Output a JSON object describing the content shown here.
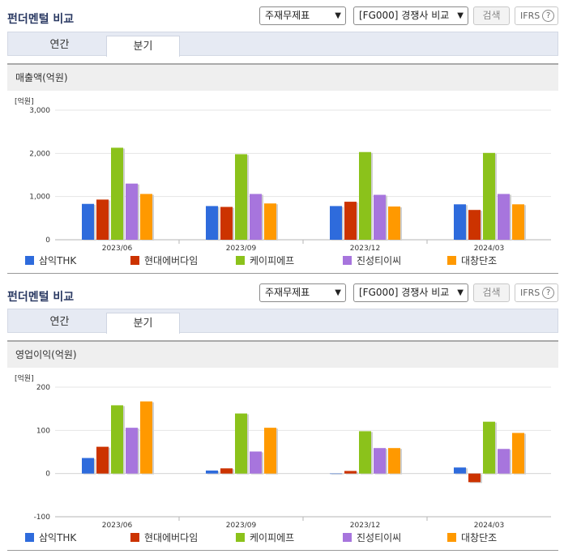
{
  "ui": {
    "title": "펀더멘털 비교",
    "statement_select": "주재무제표",
    "peer_select": "[FG000] 경쟁사 비교",
    "search_button": "검색",
    "ifrs_label": "IFRS",
    "help_glyph": "?",
    "tabs": [
      "연간",
      "분기"
    ],
    "active_tab": "분기"
  },
  "legend": {
    "colors": [
      "#2e6bdc",
      "#cc3300",
      "#8bc21b",
      "#a775dd",
      "#ff9900"
    ]
  },
  "chart_data": [
    {
      "type": "bar",
      "title": "매출액(억원)",
      "unit_label": "[억원]",
      "categories": [
        "2023/06",
        "2023/09",
        "2023/12",
        "2024/03"
      ],
      "ylim": [
        0,
        3000
      ],
      "yticks": [
        0,
        1000,
        2000,
        3000
      ],
      "ytick_labels": [
        "0",
        "1,000",
        "2,000",
        "3,000"
      ],
      "grid": true,
      "legend_position": "bottom",
      "series": [
        {
          "name": "삼익THK",
          "color": "#2e6bdc",
          "values": [
            830,
            780,
            780,
            820
          ]
        },
        {
          "name": "현대에버다임",
          "color": "#cc3300",
          "values": [
            930,
            760,
            880,
            690
          ]
        },
        {
          "name": "케이피에프",
          "color": "#8bc21b",
          "values": [
            2130,
            1980,
            2030,
            2010
          ]
        },
        {
          "name": "진성티이씨",
          "color": "#a775dd",
          "values": [
            1300,
            1060,
            1040,
            1060
          ]
        },
        {
          "name": "대창단조",
          "color": "#ff9900",
          "values": [
            1060,
            840,
            770,
            820
          ]
        }
      ]
    },
    {
      "type": "bar",
      "title": "영업이익(억원)",
      "unit_label": "[억원]",
      "categories": [
        "2023/06",
        "2023/09",
        "2023/12",
        "2024/03"
      ],
      "ylim": [
        -100,
        200
      ],
      "yticks": [
        -100,
        0,
        100,
        200
      ],
      "ytick_labels": [
        "-100",
        "0",
        "100",
        "200"
      ],
      "grid": true,
      "legend_position": "bottom",
      "series": [
        {
          "name": "삼익THK",
          "color": "#2e6bdc",
          "values": [
            36,
            7,
            0,
            14
          ]
        },
        {
          "name": "현대에버다임",
          "color": "#cc3300",
          "values": [
            62,
            12,
            6,
            -20
          ]
        },
        {
          "name": "케이피에프",
          "color": "#8bc21b",
          "values": [
            158,
            139,
            98,
            120
          ]
        },
        {
          "name": "진성티이씨",
          "color": "#a775dd",
          "values": [
            106,
            51,
            59,
            57
          ]
        },
        {
          "name": "대창단조",
          "color": "#ff9900",
          "values": [
            167,
            106,
            59,
            94
          ]
        }
      ]
    }
  ]
}
